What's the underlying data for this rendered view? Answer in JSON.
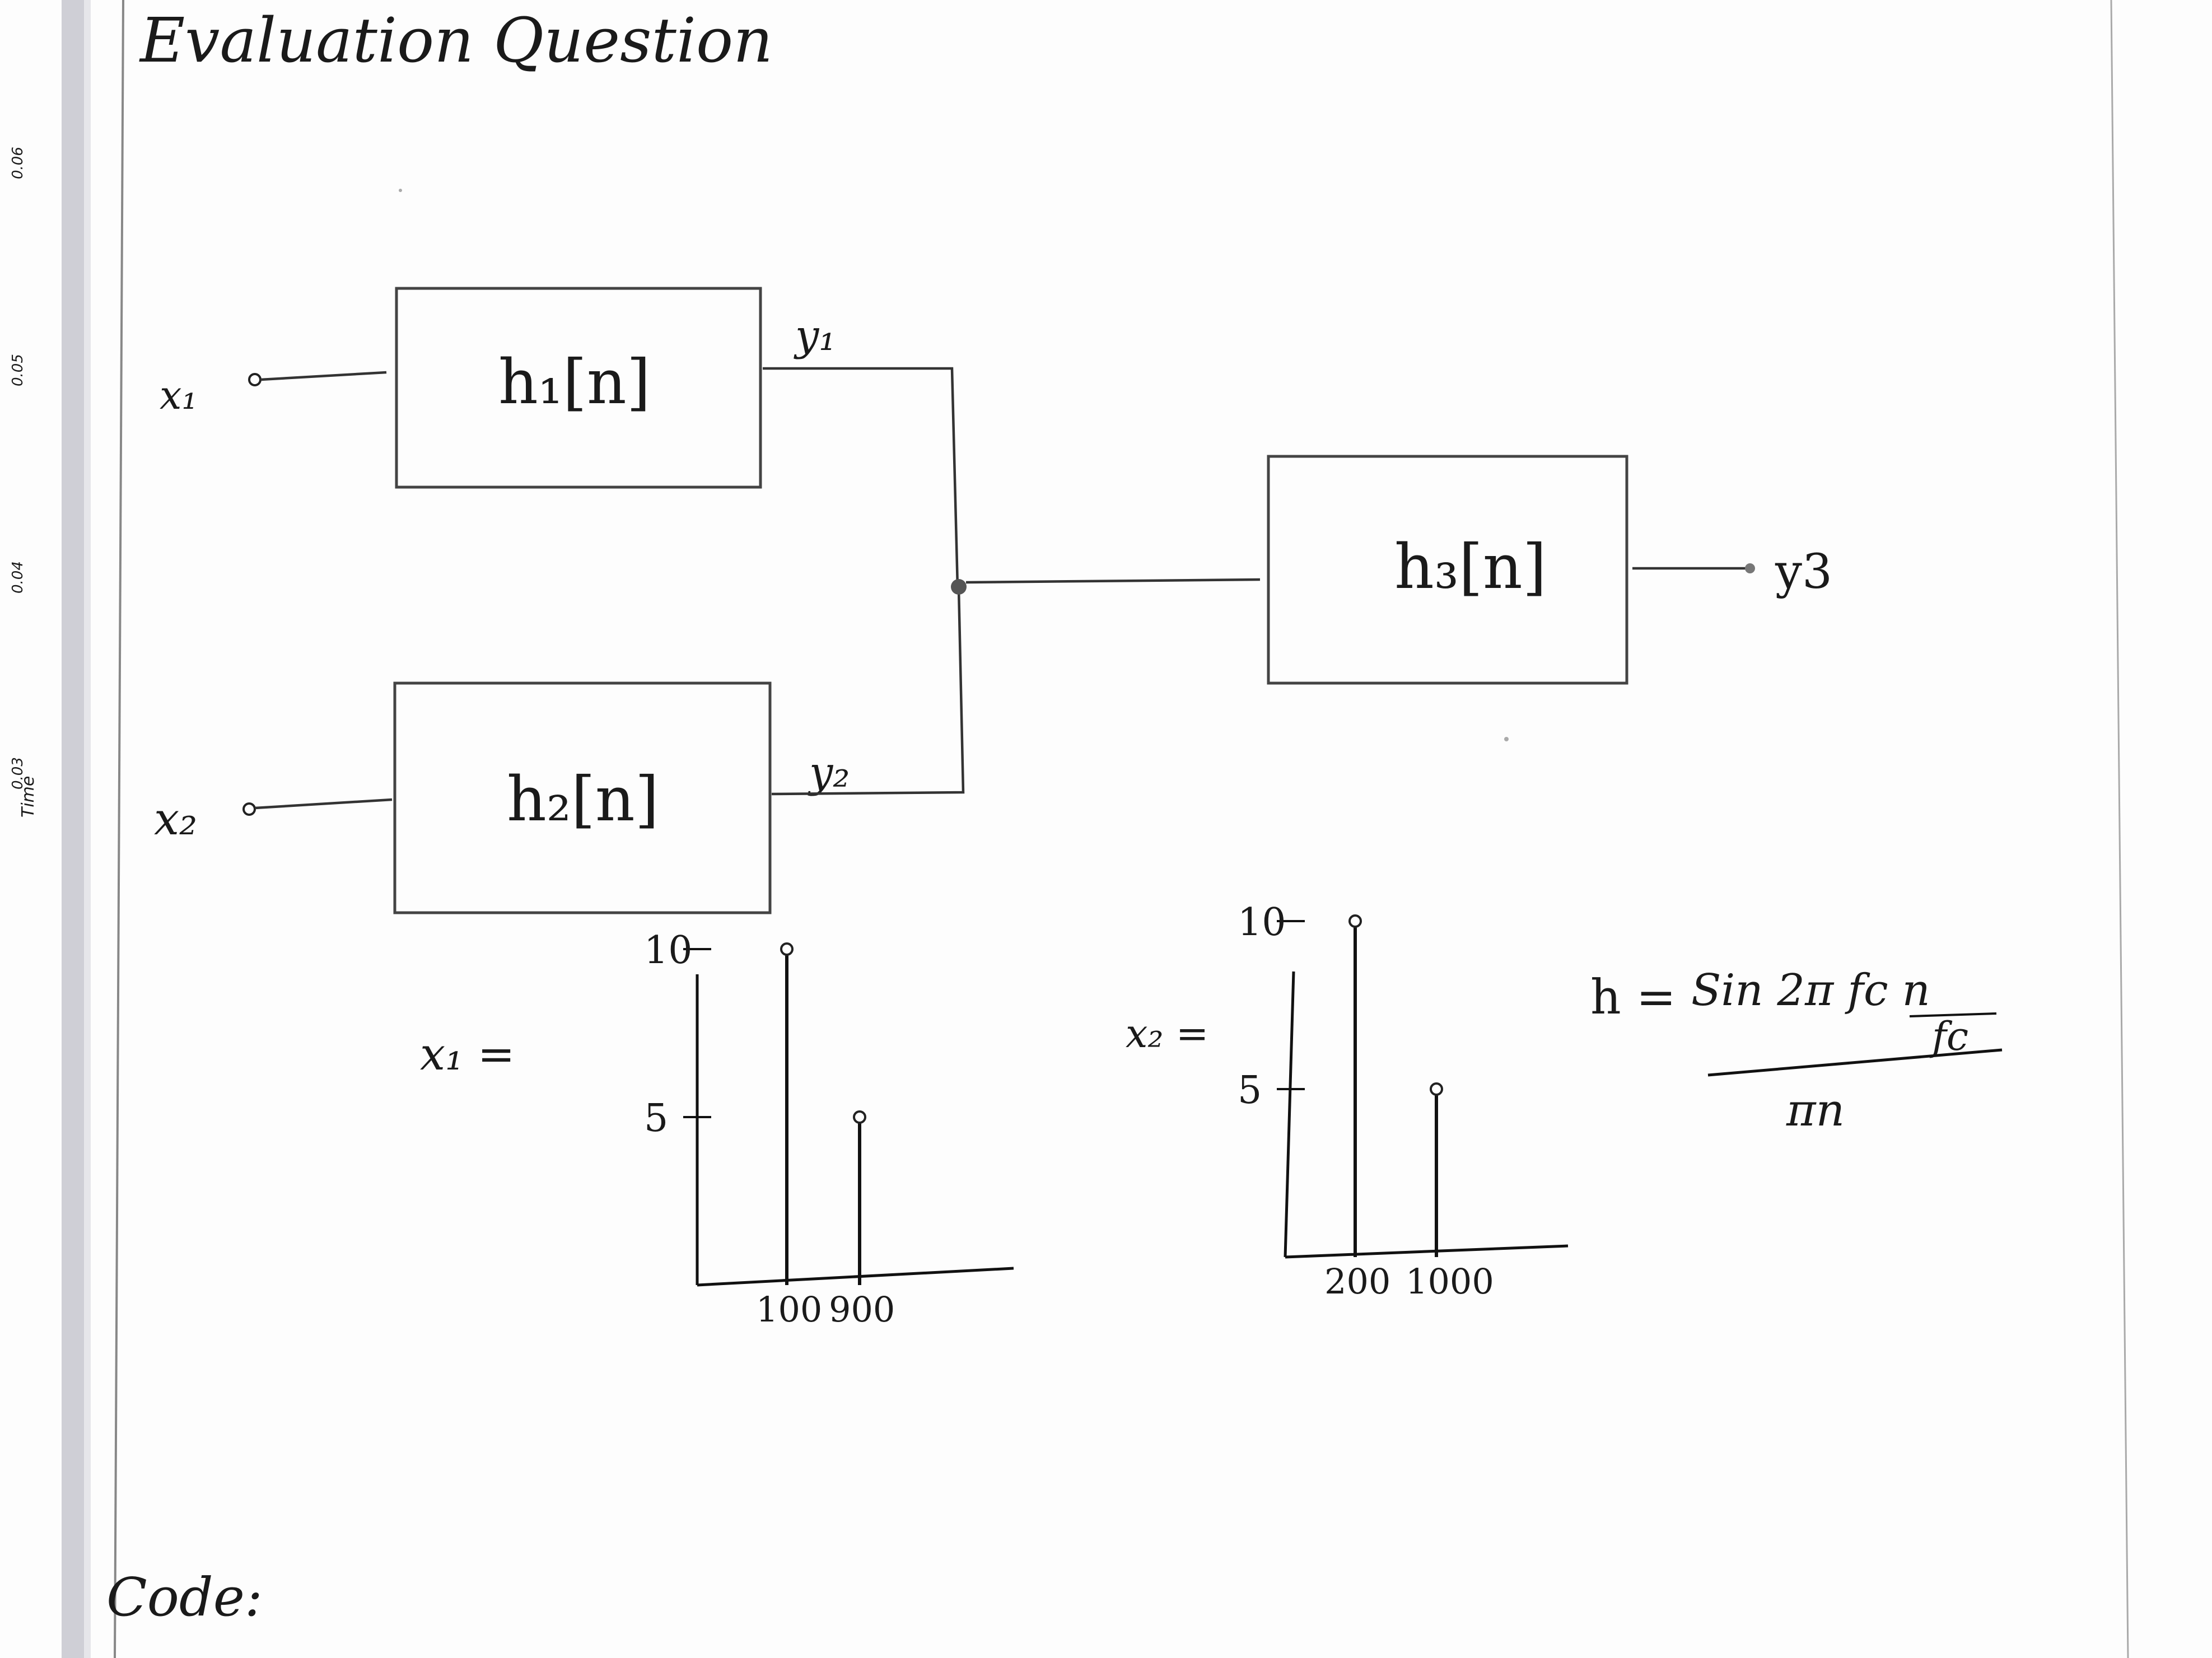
{
  "page": {
    "title": "Evaluation Question",
    "code_label": "Code:"
  },
  "diagram": {
    "inputs": [
      "x₁",
      "x₂"
    ],
    "blocks": [
      "h₁[n]",
      "h₂[n]",
      "h₃[n]"
    ],
    "signals": [
      "y₁",
      "y₂",
      "y3"
    ]
  },
  "formula": {
    "lhs": "h =",
    "numerator": "Sin 2π fc n",
    "inner_denominator": "fc",
    "denominator": "πn"
  },
  "margin_ruler": {
    "ticks": [
      "0.06",
      "0.05",
      "0.04",
      "0.03"
    ],
    "axis_label": "Time"
  },
  "chart_data": [
    {
      "type": "stem",
      "title": "x₁ =",
      "x": [
        100,
        900
      ],
      "values": [
        10,
        5
      ],
      "x_tick_labels": [
        "100",
        "900"
      ],
      "y_ticks": [
        5,
        10
      ],
      "y_tick_labels": [
        "5",
        "10"
      ]
    },
    {
      "type": "stem",
      "title": "x₂ =",
      "x": [
        200,
        1000
      ],
      "values": [
        10,
        5
      ],
      "x_tick_labels": [
        "200",
        "1000"
      ],
      "y_ticks": [
        5,
        10
      ],
      "y_tick_labels": [
        "5",
        "10"
      ]
    }
  ]
}
